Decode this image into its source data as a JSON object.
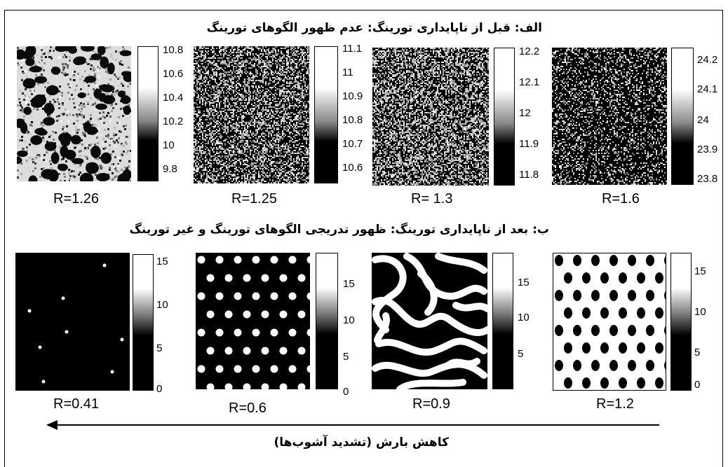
{
  "heading_top": "الف: قبل از ناپایداری تورینگ: عدم ظهور الگوهای تورینگ",
  "heading_bottom": "ب: بعد از ناپایداری تورینگ: ظهور تدریجی الگوهای تورینگ و غیر تورینگ",
  "arrow_caption": "کاهش بارش (تشدید آشوب‌ها)",
  "panels_top": [
    {
      "label": "R=1.26",
      "colorbar_ticks": [
        "10.8",
        "10.6",
        "10.4",
        "10.2",
        "10",
        "9.8"
      ],
      "pattern": "coarse-noise"
    },
    {
      "label": "R=1.25",
      "colorbar_ticks": [
        "11.1",
        "11",
        "10.9",
        "10.8",
        "10.7",
        "10.6"
      ],
      "pattern": "fine-noise"
    },
    {
      "label": "R= 1.3",
      "colorbar_ticks": [
        "12.2",
        "12.1",
        "12",
        "11.9",
        "11.8"
      ],
      "pattern": "fine-noise"
    },
    {
      "label": "R=1.6",
      "colorbar_ticks": [
        "24.2",
        "24.1",
        "24",
        "23.9",
        "23.8"
      ],
      "pattern": "very-fine-noise"
    }
  ],
  "panels_bottom": [
    {
      "label": "R=0.41",
      "colorbar_ticks": [
        "15",
        "10",
        "5",
        "0"
      ],
      "pattern": "sparse-spots"
    },
    {
      "label": "R=0.6",
      "colorbar_ticks": [
        "15",
        "10",
        "5",
        "0"
      ],
      "pattern": "white-spots"
    },
    {
      "label": "R=0.9",
      "colorbar_ticks": [
        "15",
        "10",
        "5"
      ],
      "pattern": "labyrinth-stripes"
    },
    {
      "label": "R=1.2",
      "colorbar_ticks": [
        "15",
        "10",
        "5",
        "0"
      ],
      "pattern": "black-spots"
    }
  ]
}
